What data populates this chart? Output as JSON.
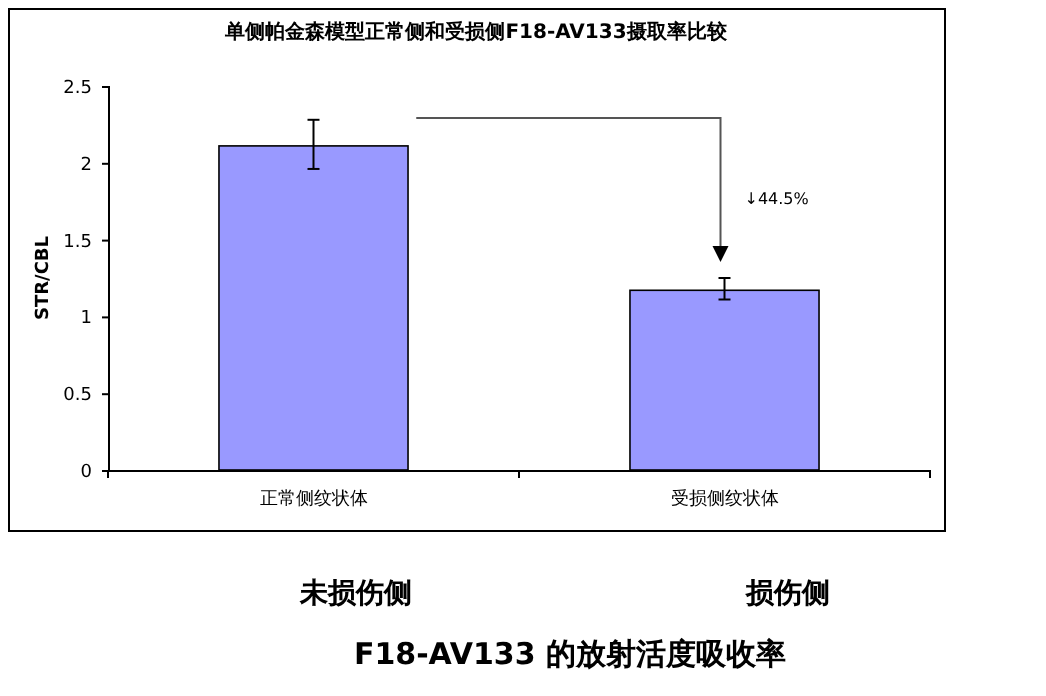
{
  "chart_data": {
    "type": "bar",
    "title": "单侧帕金森模型正常侧和受损侧F18-AV133摄取率比较",
    "ylabel": "STR/CBL",
    "categories": [
      "正常侧纹状体",
      "受损侧纹状体"
    ],
    "values": [
      2.11,
      1.17
    ],
    "errors": [
      [
        1.96,
        2.28
      ],
      [
        1.11,
        1.25
      ]
    ],
    "color": "#9999ff",
    "ylim": [
      0,
      2.5
    ],
    "yticks": [
      0,
      0.5,
      1,
      1.5,
      2,
      2.5
    ],
    "grid": false,
    "annotations": [
      "↓44.5%",
      "未损伤侧",
      "损伤侧",
      "F18-AV133 的放射活度吸收率"
    ]
  }
}
